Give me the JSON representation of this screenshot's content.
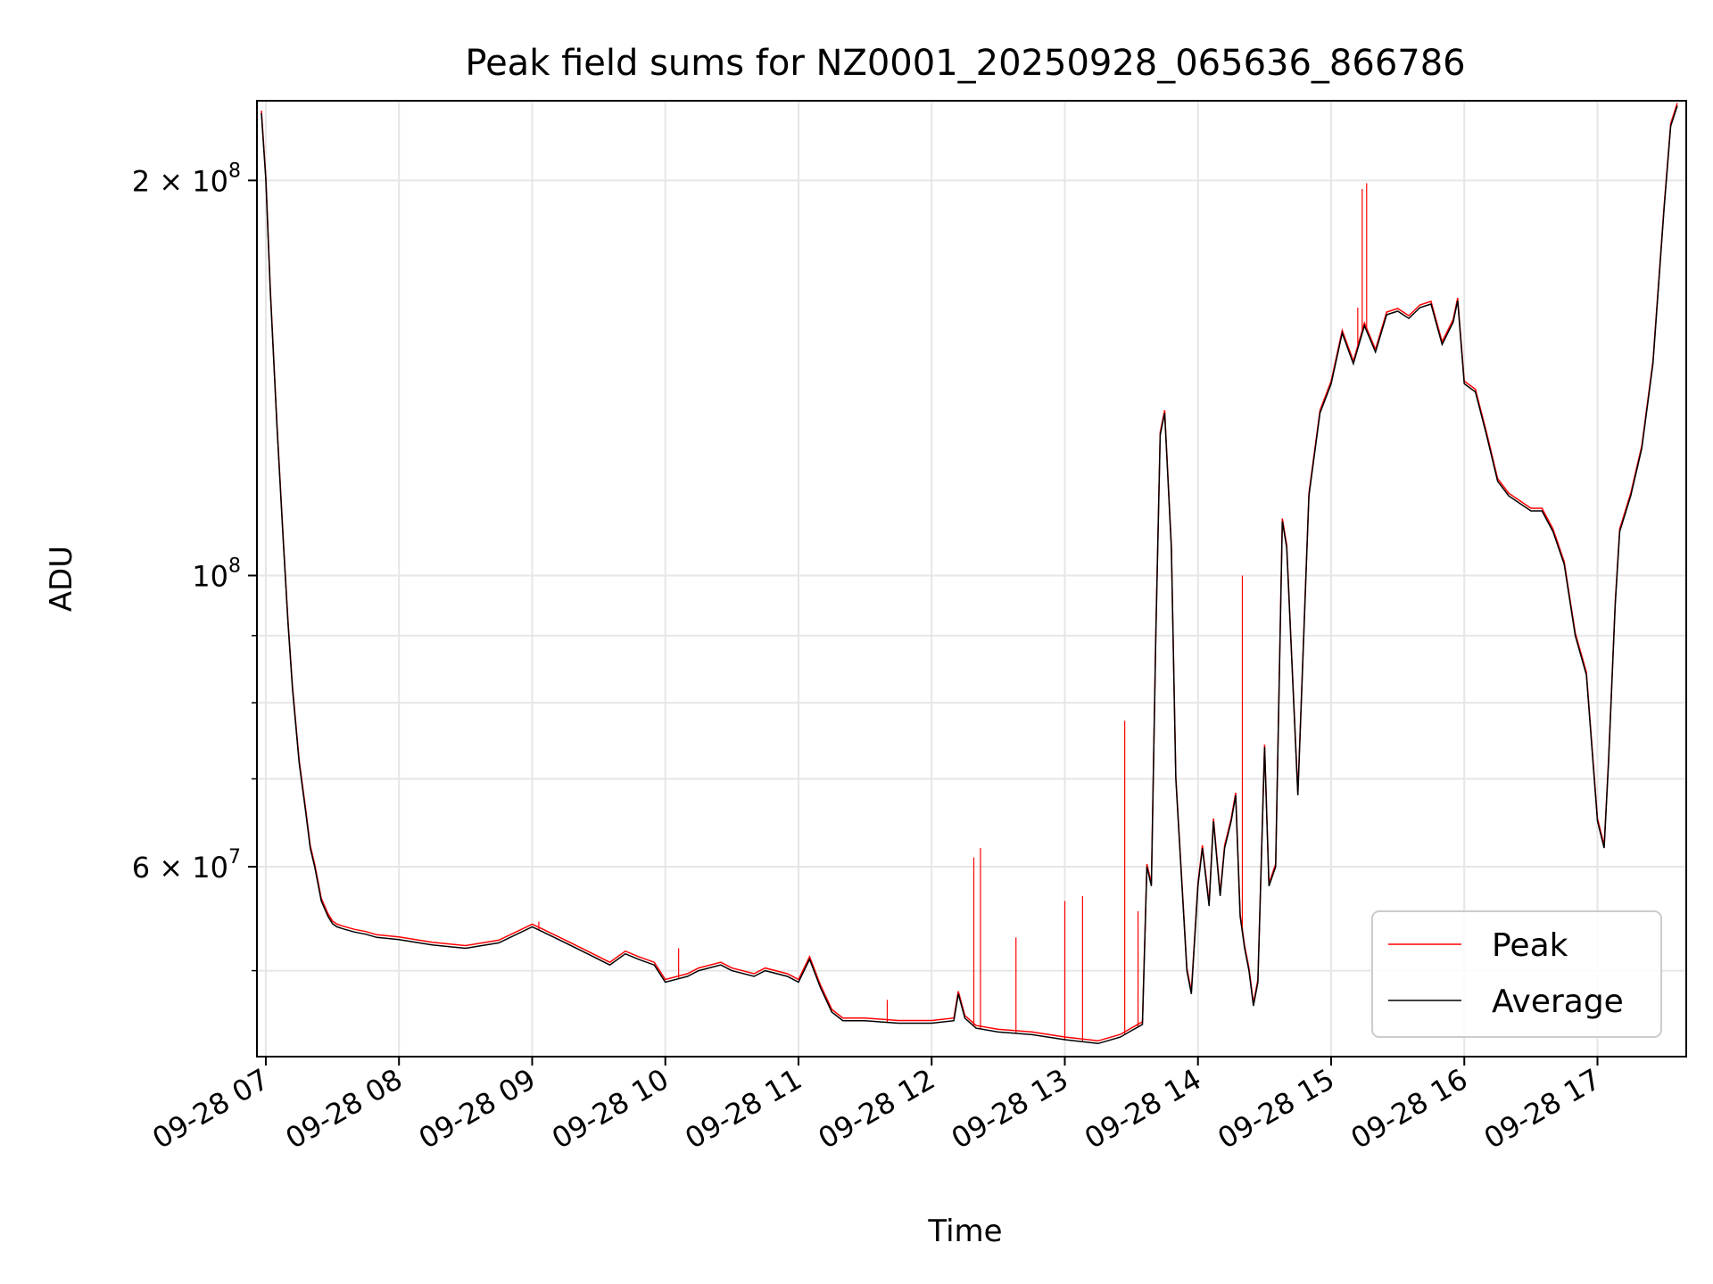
{
  "chart_data": {
    "type": "line",
    "title": "Peak field sums for NZ0001_20250928_065636_866786",
    "xlabel": "Time",
    "ylabel": "ADU",
    "y_scale": "log",
    "ylim": [
      43000000,
      230000000
    ],
    "xlim": [
      "2025-09-28T06:56",
      "2025-09-28T17:40"
    ],
    "x_ticks": [
      {
        "t": "2025-09-28T07:00",
        "label": "09-28 07"
      },
      {
        "t": "2025-09-28T08:00",
        "label": "09-28 08"
      },
      {
        "t": "2025-09-28T09:00",
        "label": "09-28 09"
      },
      {
        "t": "2025-09-28T10:00",
        "label": "09-28 10"
      },
      {
        "t": "2025-09-28T11:00",
        "label": "09-28 11"
      },
      {
        "t": "2025-09-28T12:00",
        "label": "09-28 12"
      },
      {
        "t": "2025-09-28T13:00",
        "label": "09-28 13"
      },
      {
        "t": "2025-09-28T14:00",
        "label": "09-28 14"
      },
      {
        "t": "2025-09-28T15:00",
        "label": "09-28 15"
      },
      {
        "t": "2025-09-28T16:00",
        "label": "09-28 16"
      },
      {
        "t": "2025-09-28T17:00",
        "label": "09-28 17"
      }
    ],
    "y_major_ticks": [
      {
        "v": 60000000,
        "base": "6 × 10",
        "exp": "7"
      },
      {
        "v": 100000000,
        "base": "10",
        "exp": "8"
      },
      {
        "v": 200000000,
        "base": "2 × 10",
        "exp": "8"
      }
    ],
    "y_minor_ticks": [
      50000000,
      70000000,
      80000000,
      90000000
    ],
    "grid": true,
    "legend_position": "lower-right",
    "series": [
      {
        "name": "Peak",
        "color": "#ff0000"
      },
      {
        "name": "Average",
        "color": "#000000"
      }
    ],
    "x": [
      "2025-09-28T06:58",
      "2025-09-28T07:00",
      "2025-09-28T07:02",
      "2025-09-28T07:05",
      "2025-09-28T07:08",
      "2025-09-28T07:10",
      "2025-09-28T07:12",
      "2025-09-28T07:15",
      "2025-09-28T07:18",
      "2025-09-28T07:20",
      "2025-09-28T07:22",
      "2025-09-28T07:25",
      "2025-09-28T07:28",
      "2025-09-28T07:30",
      "2025-09-28T07:32",
      "2025-09-28T07:35",
      "2025-09-28T07:40",
      "2025-09-28T07:45",
      "2025-09-28T07:50",
      "2025-09-28T08:00",
      "2025-09-28T08:15",
      "2025-09-28T08:30",
      "2025-09-28T08:45",
      "2025-09-28T09:00",
      "2025-09-28T09:05",
      "2025-09-28T09:15",
      "2025-09-28T09:25",
      "2025-09-28T09:35",
      "2025-09-28T09:42",
      "2025-09-28T09:48",
      "2025-09-28T09:55",
      "2025-09-28T10:00",
      "2025-09-28T10:10",
      "2025-09-28T10:15",
      "2025-09-28T10:25",
      "2025-09-28T10:30",
      "2025-09-28T10:40",
      "2025-09-28T10:45",
      "2025-09-28T10:55",
      "2025-09-28T11:00",
      "2025-09-28T11:05",
      "2025-09-28T11:10",
      "2025-09-28T11:15",
      "2025-09-28T11:20",
      "2025-09-28T11:30",
      "2025-09-28T11:45",
      "2025-09-28T12:00",
      "2025-09-28T12:10",
      "2025-09-28T12:12",
      "2025-09-28T12:15",
      "2025-09-28T12:20",
      "2025-09-28T12:30",
      "2025-09-28T12:45",
      "2025-09-28T13:00",
      "2025-09-28T13:15",
      "2025-09-28T13:25",
      "2025-09-28T13:30",
      "2025-09-28T13:35",
      "2025-09-28T13:37",
      "2025-09-28T13:39",
      "2025-09-28T13:41",
      "2025-09-28T13:43",
      "2025-09-28T13:45",
      "2025-09-28T13:48",
      "2025-09-28T13:50",
      "2025-09-28T13:55",
      "2025-09-28T13:57",
      "2025-09-28T14:00",
      "2025-09-28T14:02",
      "2025-09-28T14:05",
      "2025-09-28T14:07",
      "2025-09-28T14:10",
      "2025-09-28T14:12",
      "2025-09-28T14:15",
      "2025-09-28T14:17",
      "2025-09-28T14:19",
      "2025-09-28T14:21",
      "2025-09-28T14:23",
      "2025-09-28T14:25",
      "2025-09-28T14:27",
      "2025-09-28T14:30",
      "2025-09-28T14:32",
      "2025-09-28T14:35",
      "2025-09-28T14:38",
      "2025-09-28T14:40",
      "2025-09-28T14:45",
      "2025-09-28T14:50",
      "2025-09-28T14:55",
      "2025-09-28T15:00",
      "2025-09-28T15:05",
      "2025-09-28T15:10",
      "2025-09-28T15:15",
      "2025-09-28T15:20",
      "2025-09-28T15:25",
      "2025-09-28T15:30",
      "2025-09-28T15:35",
      "2025-09-28T15:40",
      "2025-09-28T15:45",
      "2025-09-28T15:50",
      "2025-09-28T15:55",
      "2025-09-28T15:57",
      "2025-09-28T16:00",
      "2025-09-28T16:05",
      "2025-09-28T16:10",
      "2025-09-28T16:15",
      "2025-09-28T16:20",
      "2025-09-28T16:30",
      "2025-09-28T16:35",
      "2025-09-28T16:40",
      "2025-09-28T16:45",
      "2025-09-28T16:50",
      "2025-09-28T16:55",
      "2025-09-28T17:00",
      "2025-09-28T17:03",
      "2025-09-28T17:05",
      "2025-09-28T17:08",
      "2025-09-28T17:10",
      "2025-09-28T17:15",
      "2025-09-28T17:20",
      "2025-09-28T17:25",
      "2025-09-28T17:30",
      "2025-09-28T17:33",
      "2025-09-28T17:36"
    ],
    "average_values": [
      225000000,
      200000000,
      165000000,
      130000000,
      105000000,
      92000000,
      82000000,
      72000000,
      66000000,
      62000000,
      60000000,
      56500000,
      55000000,
      54300000,
      54000000,
      53800000,
      53500000,
      53300000,
      53000000,
      52800000,
      52300000,
      52000000,
      52500000,
      54000000,
      53500000,
      52500000,
      51500000,
      50500000,
      51500000,
      51000000,
      50500000,
      49000000,
      49500000,
      50000000,
      50500000,
      50000000,
      49500000,
      50000000,
      49500000,
      49000000,
      51000000,
      48500000,
      46500000,
      45800000,
      45800000,
      45600000,
      45600000,
      45800000,
      48000000,
      46000000,
      45200000,
      44900000,
      44700000,
      44300000,
      44000000,
      44500000,
      45000000,
      45500000,
      60000000,
      58000000,
      90000000,
      128000000,
      133000000,
      105000000,
      70000000,
      50000000,
      48000000,
      58000000,
      62000000,
      56000000,
      65000000,
      57000000,
      62000000,
      65000000,
      68000000,
      55000000,
      52000000,
      50000000,
      47000000,
      49000000,
      74000000,
      58000000,
      60000000,
      110000000,
      105000000,
      68000000,
      115000000,
      133000000,
      140000000,
      153000000,
      145000000,
      155000000,
      148000000,
      158000000,
      159000000,
      157000000,
      160000000,
      161000000,
      150000000,
      156000000,
      162000000,
      140000000,
      138000000,
      128000000,
      118000000,
      115000000,
      112000000,
      112000000,
      108000000,
      102000000,
      90000000,
      84000000,
      65000000,
      62000000,
      72000000,
      95000000,
      108000000,
      115000000,
      125000000,
      145000000,
      190000000,
      220000000,
      228000000
    ],
    "peak_spikes": [
      {
        "x": "2025-09-28T09:03",
        "y": 54500000
      },
      {
        "x": "2025-09-28T10:06",
        "y": 52000000
      },
      {
        "x": "2025-09-28T11:40",
        "y": 47500000
      },
      {
        "x": "2025-09-28T12:19",
        "y": 61000000
      },
      {
        "x": "2025-09-28T12:22",
        "y": 62000000
      },
      {
        "x": "2025-09-28T12:38",
        "y": 53000000
      },
      {
        "x": "2025-09-28T13:00",
        "y": 56500000
      },
      {
        "x": "2025-09-28T13:08",
        "y": 57000000
      },
      {
        "x": "2025-09-28T13:27",
        "y": 77500000
      },
      {
        "x": "2025-09-28T13:33",
        "y": 55500000
      },
      {
        "x": "2025-09-28T14:20",
        "y": 100000000
      },
      {
        "x": "2025-09-28T15:12",
        "y": 160000000
      },
      {
        "x": "2025-09-28T15:14",
        "y": 197000000
      },
      {
        "x": "2025-09-28T15:16",
        "y": 199000000
      }
    ]
  }
}
